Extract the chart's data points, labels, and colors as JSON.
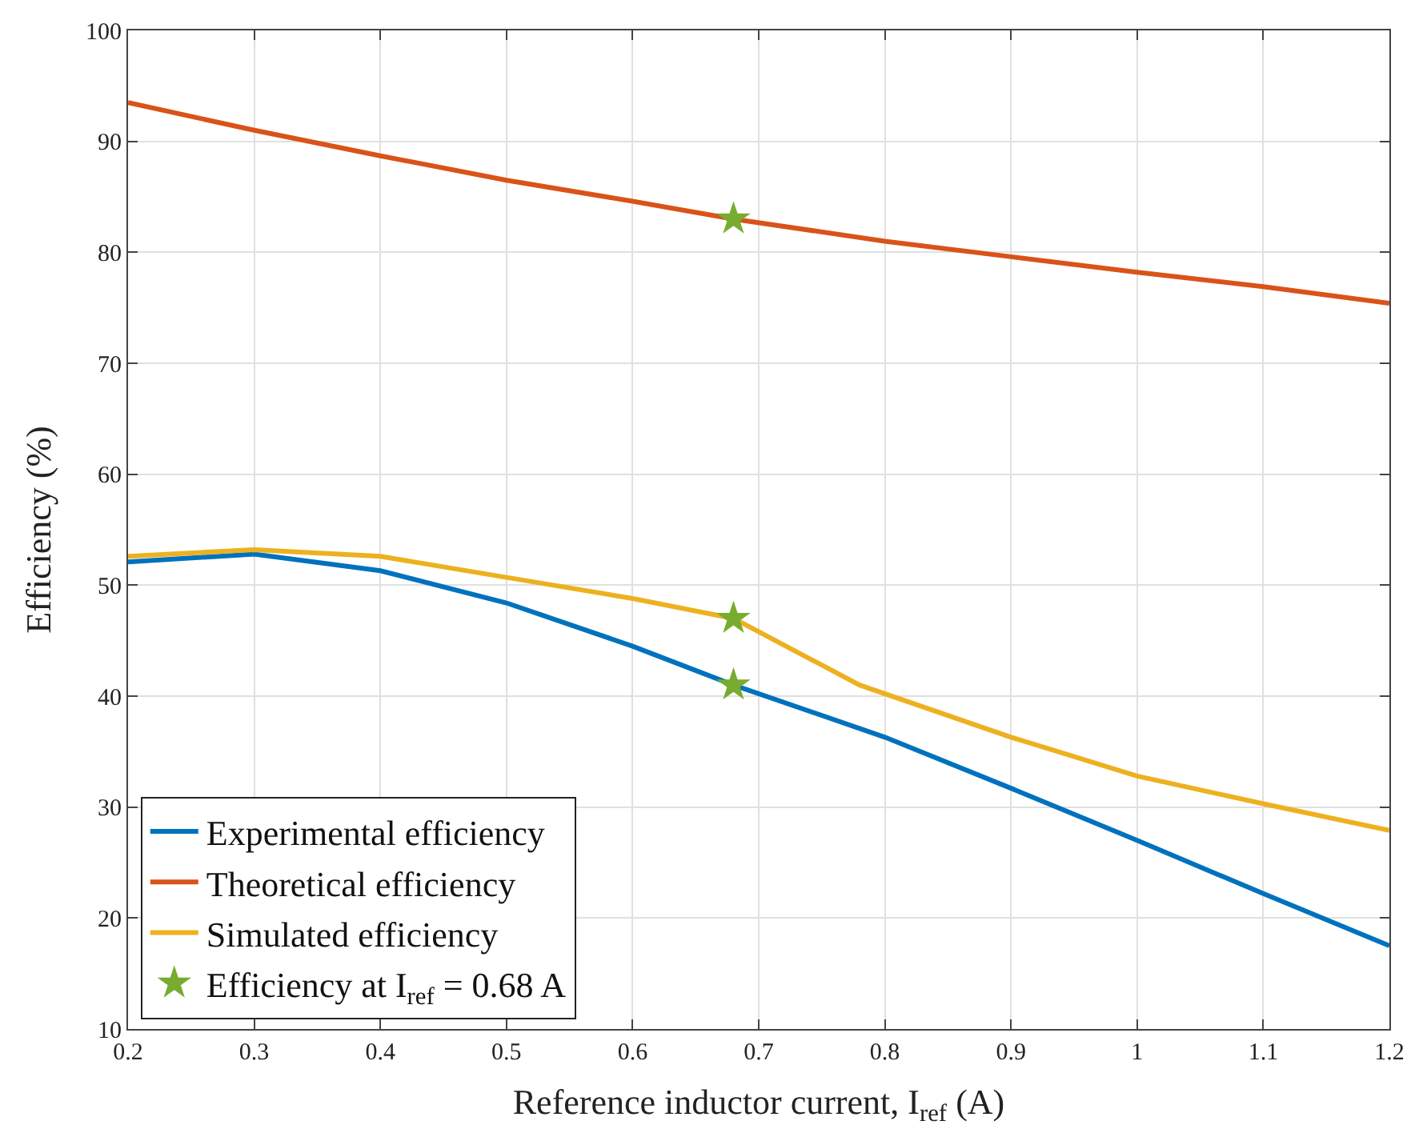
{
  "chart_data": {
    "type": "line",
    "xlabel": "Reference inductor current, I$_{ref}$ (A)",
    "ylabel": "Efficiency (%)",
    "x": [
      0.2,
      0.3,
      0.4,
      0.5,
      0.6,
      0.68,
      0.8,
      0.9,
      1.0,
      1.1,
      1.2
    ],
    "series": [
      {
        "name": "Experimental efficiency",
        "color": "#0072bd",
        "values": [
          52.1,
          52.8,
          51.3,
          48.4,
          44.5,
          41,
          36.3,
          31.7,
          27,
          22.2,
          17.5
        ]
      },
      {
        "name": "Theoretical efficiency",
        "color": "#d95319",
        "values": [
          93.5,
          91,
          88.7,
          86.5,
          84.6,
          83,
          81,
          79.6,
          78.2,
          76.9,
          75.4
        ]
      },
      {
        "name": "Simulated efficiency",
        "color": "#edb120",
        "x": [
          0.2,
          0.3,
          0.4,
          0.5,
          0.6,
          0.68,
          0.78,
          0.9,
          1.0,
          1.1,
          1.2
        ],
        "values": [
          52.6,
          53.2,
          52.6,
          50.7,
          48.8,
          47,
          41,
          36.3,
          32.8,
          30.3,
          27.9
        ]
      },
      {
        "name": "Efficiency at I$_{ref}$ = 0.68 A",
        "type": "scatter",
        "marker": "star",
        "color": "#77ac30",
        "x": [
          0.68,
          0.68,
          0.68
        ],
        "values": [
          83,
          47,
          41
        ]
      }
    ],
    "xlim": [
      0.2,
      1.2
    ],
    "xticks": [
      0.2,
      0.3,
      0.4,
      0.5,
      0.6,
      0.7,
      0.8,
      0.9,
      1,
      1.1,
      1.2
    ],
    "ylim": [
      10,
      100
    ],
    "yticks": [
      10,
      20,
      30,
      40,
      50,
      60,
      70,
      80,
      90,
      100
    ],
    "grid": true,
    "legend": "bottom left",
    "line_style": "solid"
  }
}
